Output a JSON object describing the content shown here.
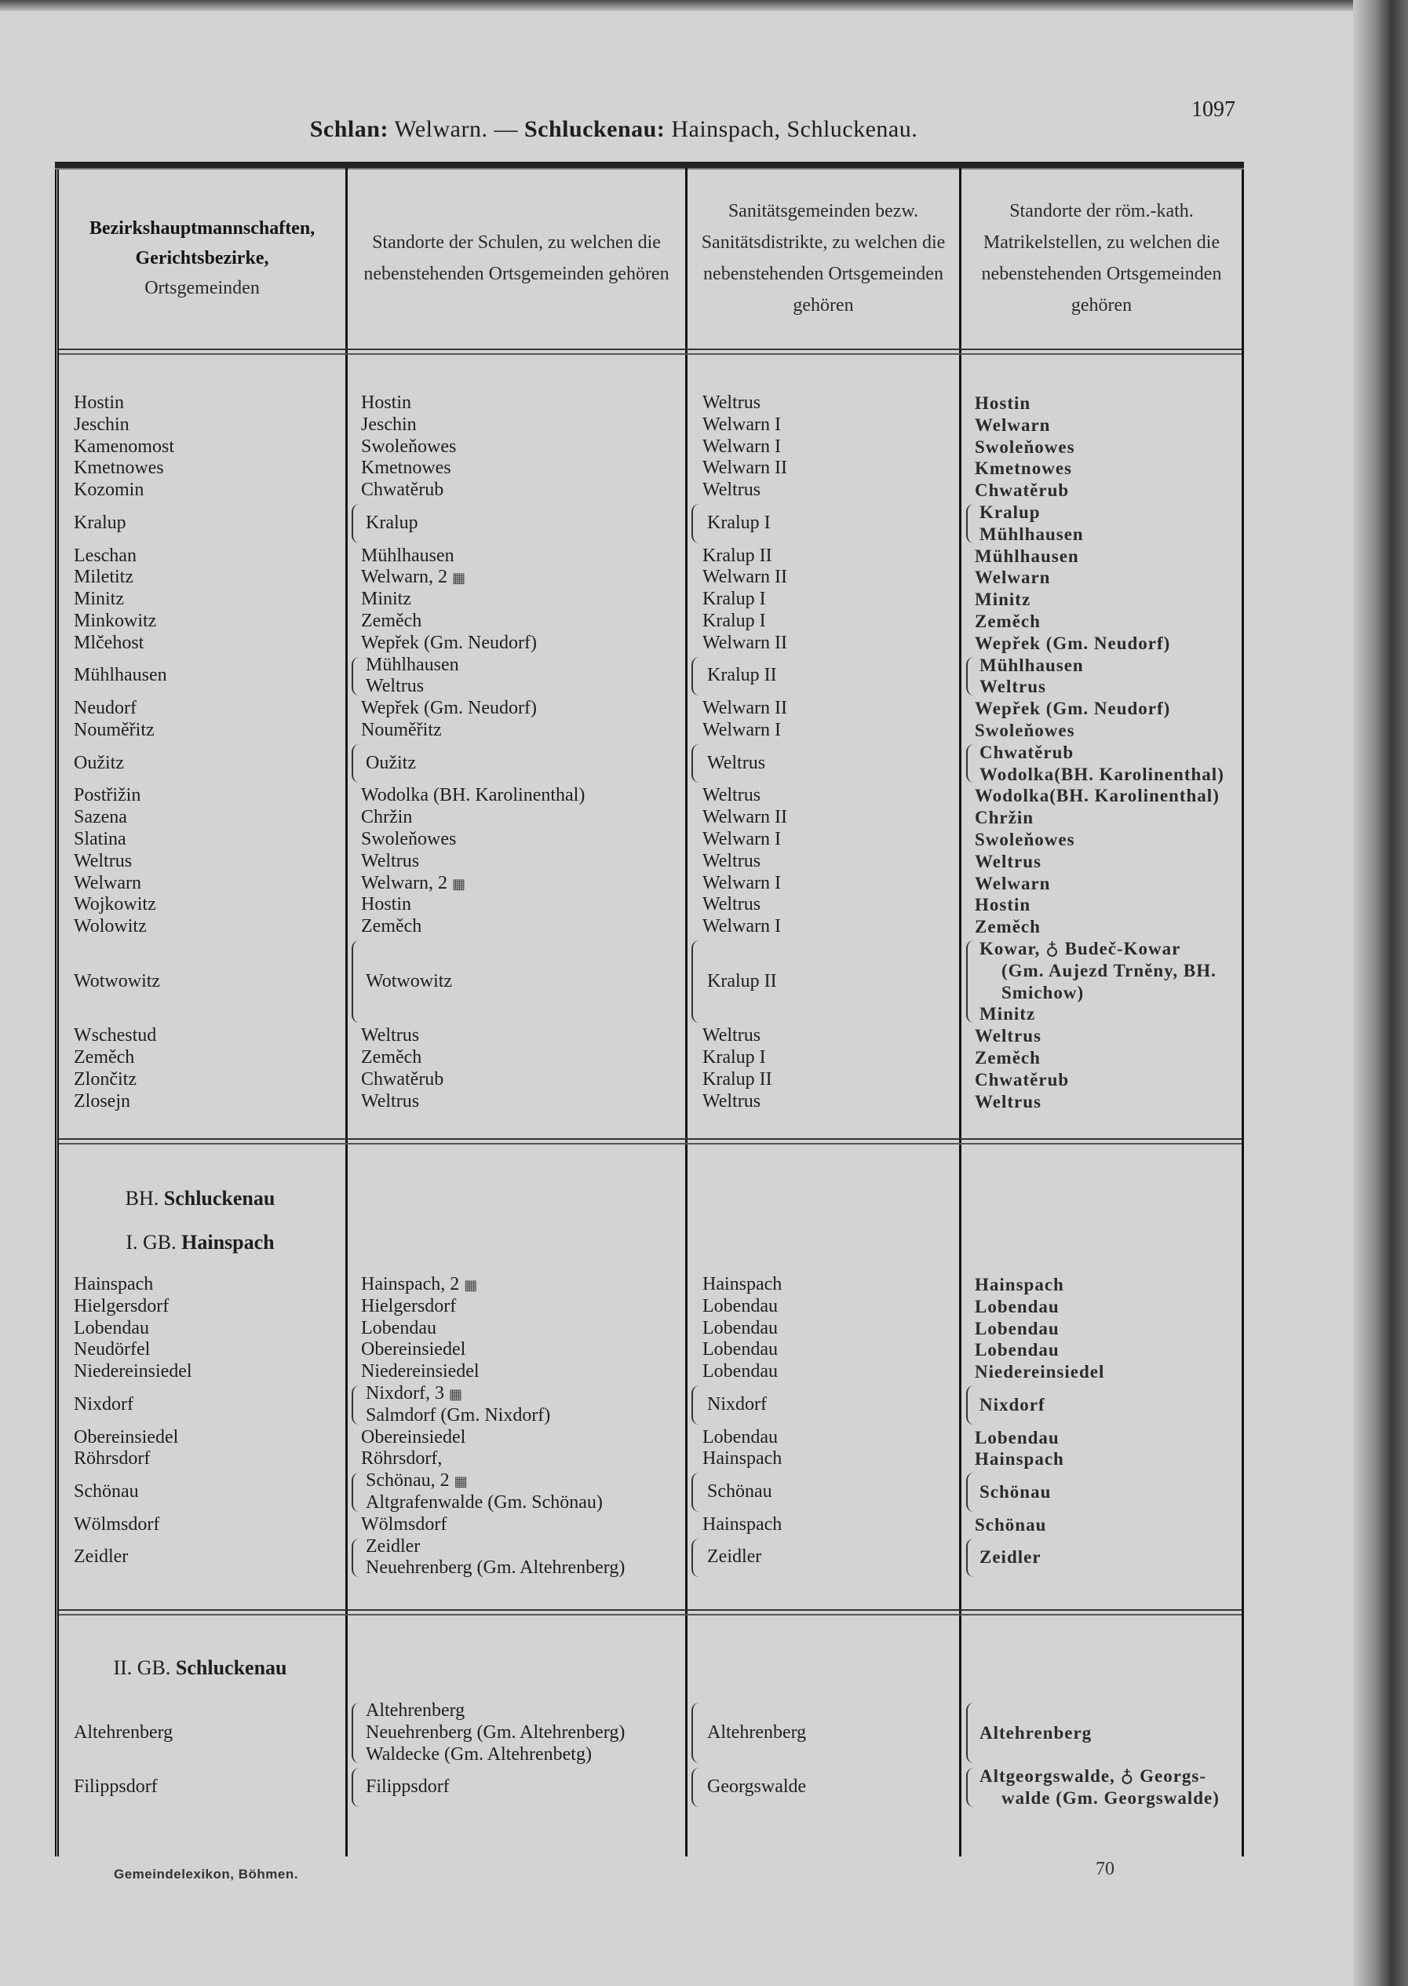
{
  "running_header": {
    "a_bold": "Schlan:",
    "a": " Welwarn. — ",
    "b_bold": "Schluckenau:",
    "b": " Hainspach, Schluckenau."
  },
  "page_number": "1097",
  "columns": [
    {
      "bold1": "Bezirkshauptmannschaften,",
      "bold2": "Gerichtsbezirke,",
      "text": "Ortsgemeinden"
    },
    {
      "text": "Standorte der Schulen, zu welchen die nebenstehenden Ortsgemeinden gehören"
    },
    {
      "text": "Sanitätsgemeinden bezw. Sanitätsdistrikte, zu welchen die nebenstehenden Ortsgemeinden gehören"
    },
    {
      "text": "Standorte der röm.-kath. Matrikelstellen, zu welchen die nebenstehenden Ortsgemeinden gehören"
    }
  ],
  "sections": [
    {
      "rows": [
        [
          "Hostin",
          [
            "Hostin"
          ],
          [
            "Weltrus"
          ],
          [
            "Hostin"
          ]
        ],
        [
          "Jeschin",
          [
            "Jeschin"
          ],
          [
            "Welwarn I"
          ],
          [
            "Welwarn"
          ]
        ],
        [
          "Kamenomost",
          [
            "Swoleňowes"
          ],
          [
            "Welwarn I"
          ],
          [
            "Swoleňowes"
          ]
        ],
        [
          "Kmetnowes",
          [
            "Kmetnowes"
          ],
          [
            "Welwarn II"
          ],
          [
            "Kmetnowes"
          ]
        ],
        [
          "Kozomin",
          [
            "Chwatěrub"
          ],
          [
            "Weltrus"
          ],
          [
            "Chwatěrub"
          ]
        ],
        [
          "Kralup",
          {
            "brace": true,
            "lines": [
              "Kralup"
            ]
          },
          {
            "brace": true,
            "lines": [
              "Kralup I"
            ]
          },
          {
            "brace": true,
            "lines": [
              "Kralup",
              "Mühlhausen"
            ]
          }
        ],
        [
          "Leschan",
          [
            "Mühlhausen"
          ],
          [
            "Kralup II"
          ],
          [
            "Mühlhausen"
          ]
        ],
        [
          "Miletitz",
          [
            {
              "t": "Welwarn, 2",
              "icon": "school-icon"
            }
          ],
          [
            "Welwarn II"
          ],
          [
            "Welwarn"
          ]
        ],
        [
          "Minitz",
          [
            "Minitz"
          ],
          [
            "Kralup I"
          ],
          [
            "Minitz"
          ]
        ],
        [
          "Minkowitz",
          [
            "Zeměch"
          ],
          [
            "Kralup I"
          ],
          [
            "Zeměch"
          ]
        ],
        [
          "Mlčehost",
          [
            "Wepřek (Gm. Neudorf)"
          ],
          [
            "Welwarn II"
          ],
          [
            "Wepřek (Gm. Neudorf)"
          ]
        ],
        [
          "Mühlhausen",
          {
            "brace": true,
            "lines": [
              "Mühlhausen",
              "Weltrus"
            ]
          },
          {
            "brace": true,
            "lines": [
              "Kralup II"
            ]
          },
          {
            "brace": true,
            "lines": [
              "Mühlhausen",
              "Weltrus"
            ]
          }
        ],
        [
          "Neudorf",
          [
            "Wepřek (Gm. Neudorf)"
          ],
          [
            "Welwarn II"
          ],
          [
            "Wepřek (Gm. Neudorf)"
          ]
        ],
        [
          "Nouměřitz",
          [
            "Nouměřitz"
          ],
          [
            "Welwarn I"
          ],
          [
            "Swoleňowes"
          ]
        ],
        [
          "Oužitz",
          {
            "brace": true,
            "lines": [
              "Oužitz"
            ]
          },
          {
            "brace": true,
            "lines": [
              "Weltrus"
            ]
          },
          {
            "brace": true,
            "lines": [
              "Chwatěrub",
              "Wodolka(BH. Karolinenthal)"
            ]
          }
        ],
        [
          "Postřižin",
          [
            "Wodolka (BH. Karolinenthal)"
          ],
          [
            "Weltrus"
          ],
          [
            "Wodolka(BH. Karolinenthal)"
          ]
        ],
        [
          "Sazena",
          [
            "Chržin"
          ],
          [
            "Welwarn II"
          ],
          [
            "Chržin"
          ]
        ],
        [
          "Slatina",
          [
            "Swoleňowes"
          ],
          [
            "Welwarn I"
          ],
          [
            "Swoleňowes"
          ]
        ],
        [
          "Weltrus",
          [
            "Weltrus"
          ],
          [
            "Weltrus"
          ],
          [
            "Weltrus"
          ]
        ],
        [
          "Welwarn",
          [
            {
              "t": "Welwarn, 2",
              "icon": "school-icon"
            }
          ],
          [
            "Welwarn I"
          ],
          [
            "Welwarn"
          ]
        ],
        [
          "Wojkowitz",
          [
            "Hostin"
          ],
          [
            "Weltrus"
          ],
          [
            "Hostin"
          ]
        ],
        [
          "Wolowitz",
          [
            "Zeměch"
          ],
          [
            "Welwarn I"
          ],
          [
            "Zeměch"
          ]
        ],
        [
          "Wotwowitz",
          {
            "brace": true,
            "lines": [
              "Wotwowitz"
            ]
          },
          {
            "brace": true,
            "lines": [
              "Kralup II"
            ]
          },
          {
            "brace": true,
            "lines": [
              "Kowar, ♁ Budeč-Kowar",
              {
                "t": "(Gm. Aujezd Trněny, BH.",
                "indent": true
              },
              {
                "t": "Smichow)",
                "indent": true
              },
              "Minitz"
            ]
          }
        ],
        [
          "Wschestud",
          [
            "Weltrus"
          ],
          [
            "Weltrus"
          ],
          [
            "Weltrus"
          ]
        ],
        [
          "Zeměch",
          [
            "Zeměch"
          ],
          [
            "Kralup I"
          ],
          [
            "Zeměch"
          ]
        ],
        [
          "Zlončitz",
          [
            "Chwatěrub"
          ],
          [
            "Kralup II"
          ],
          [
            "Chwatěrub"
          ]
        ],
        [
          "Zlosejn",
          [
            "Weltrus"
          ],
          [
            "Weltrus"
          ],
          [
            "Weltrus"
          ]
        ]
      ]
    },
    {
      "headings": [
        {
          "prefix": "BH. ",
          "name": "Schluckenau"
        },
        {
          "prefix": "I. GB. ",
          "name": "Hainspach"
        }
      ],
      "rows": [
        [
          "Hainspach",
          [
            {
              "t": "Hainspach, 2",
              "icon": "school-icon"
            }
          ],
          [
            "Hainspach"
          ],
          [
            "Hainspach"
          ]
        ],
        [
          "Hielgersdorf",
          [
            "Hielgersdorf"
          ],
          [
            "Lobendau"
          ],
          [
            "Lobendau"
          ]
        ],
        [
          "Lobendau",
          [
            "Lobendau"
          ],
          [
            "Lobendau"
          ],
          [
            "Lobendau"
          ]
        ],
        [
          "Neudörfel",
          [
            "Obereinsiedel"
          ],
          [
            "Lobendau"
          ],
          [
            "Lobendau"
          ]
        ],
        [
          "Niedereinsiedel",
          [
            "Niedereinsiedel"
          ],
          [
            "Lobendau"
          ],
          [
            "Niedereinsiedel"
          ]
        ],
        [
          "Nixdorf",
          {
            "brace": true,
            "lines": [
              {
                "t": "Nixdorf, 3",
                "icon": "school-icon"
              },
              "Salmdorf (Gm. Nixdorf)"
            ]
          },
          {
            "brace": true,
            "lines": [
              "Nixdorf"
            ]
          },
          {
            "brace": true,
            "lines": [
              "Nixdorf"
            ]
          }
        ],
        [
          "Obereinsiedel",
          [
            "Obereinsiedel"
          ],
          [
            "Lobendau"
          ],
          [
            "Lobendau"
          ]
        ],
        [
          "Röhrsdorf",
          [
            "Röhrsdorf,"
          ],
          [
            "Hainspach"
          ],
          [
            "Hainspach"
          ]
        ],
        [
          "Schönau",
          {
            "brace": true,
            "lines": [
              {
                "t": "Schönau, 2",
                "icon": "school-icon"
              },
              "Altgrafenwalde (Gm. Schönau)"
            ]
          },
          {
            "brace": true,
            "lines": [
              "Schönau"
            ]
          },
          {
            "brace": true,
            "lines": [
              "Schönau"
            ]
          }
        ],
        [
          "Wölmsdorf",
          [
            "Wölmsdorf"
          ],
          [
            "Hainspach"
          ],
          [
            "Schönau"
          ]
        ],
        [
          "Zeidler",
          {
            "brace": true,
            "lines": [
              "Zeidler",
              "Neuehrenberg (Gm. Altehrenberg)"
            ]
          },
          {
            "brace": true,
            "lines": [
              "Zeidler"
            ]
          },
          {
            "brace": true,
            "lines": [
              "Zeidler"
            ]
          }
        ]
      ]
    },
    {
      "headings": [
        {
          "prefix": "II. GB. ",
          "name": "Schluckenau"
        }
      ],
      "rows": [
        [
          "Altehrenberg",
          {
            "brace": true,
            "lines": [
              "Altehrenberg",
              "Neuehrenberg (Gm. Altehrenberg)",
              "Waldecke (Gm. Altehrenbetg)"
            ]
          },
          {
            "brace": true,
            "lines": [
              "Altehrenberg"
            ]
          },
          {
            "brace": true,
            "lines": [
              "Altehrenberg"
            ]
          }
        ],
        [
          "Filippsdorf",
          {
            "brace": true,
            "lines": [
              "Filippsdorf"
            ]
          },
          {
            "brace": true,
            "lines": [
              "Georgswalde"
            ]
          },
          {
            "brace": true,
            "lines": [
              "Altgeorgswalde, ♁ Georgs-",
              {
                "t": "walde (Gm. Georgswalde)",
                "indent": true
              }
            ]
          }
        ]
      ]
    }
  ],
  "footer": {
    "left": "Gemeindelexikon, Böhmen.",
    "right": "70"
  }
}
